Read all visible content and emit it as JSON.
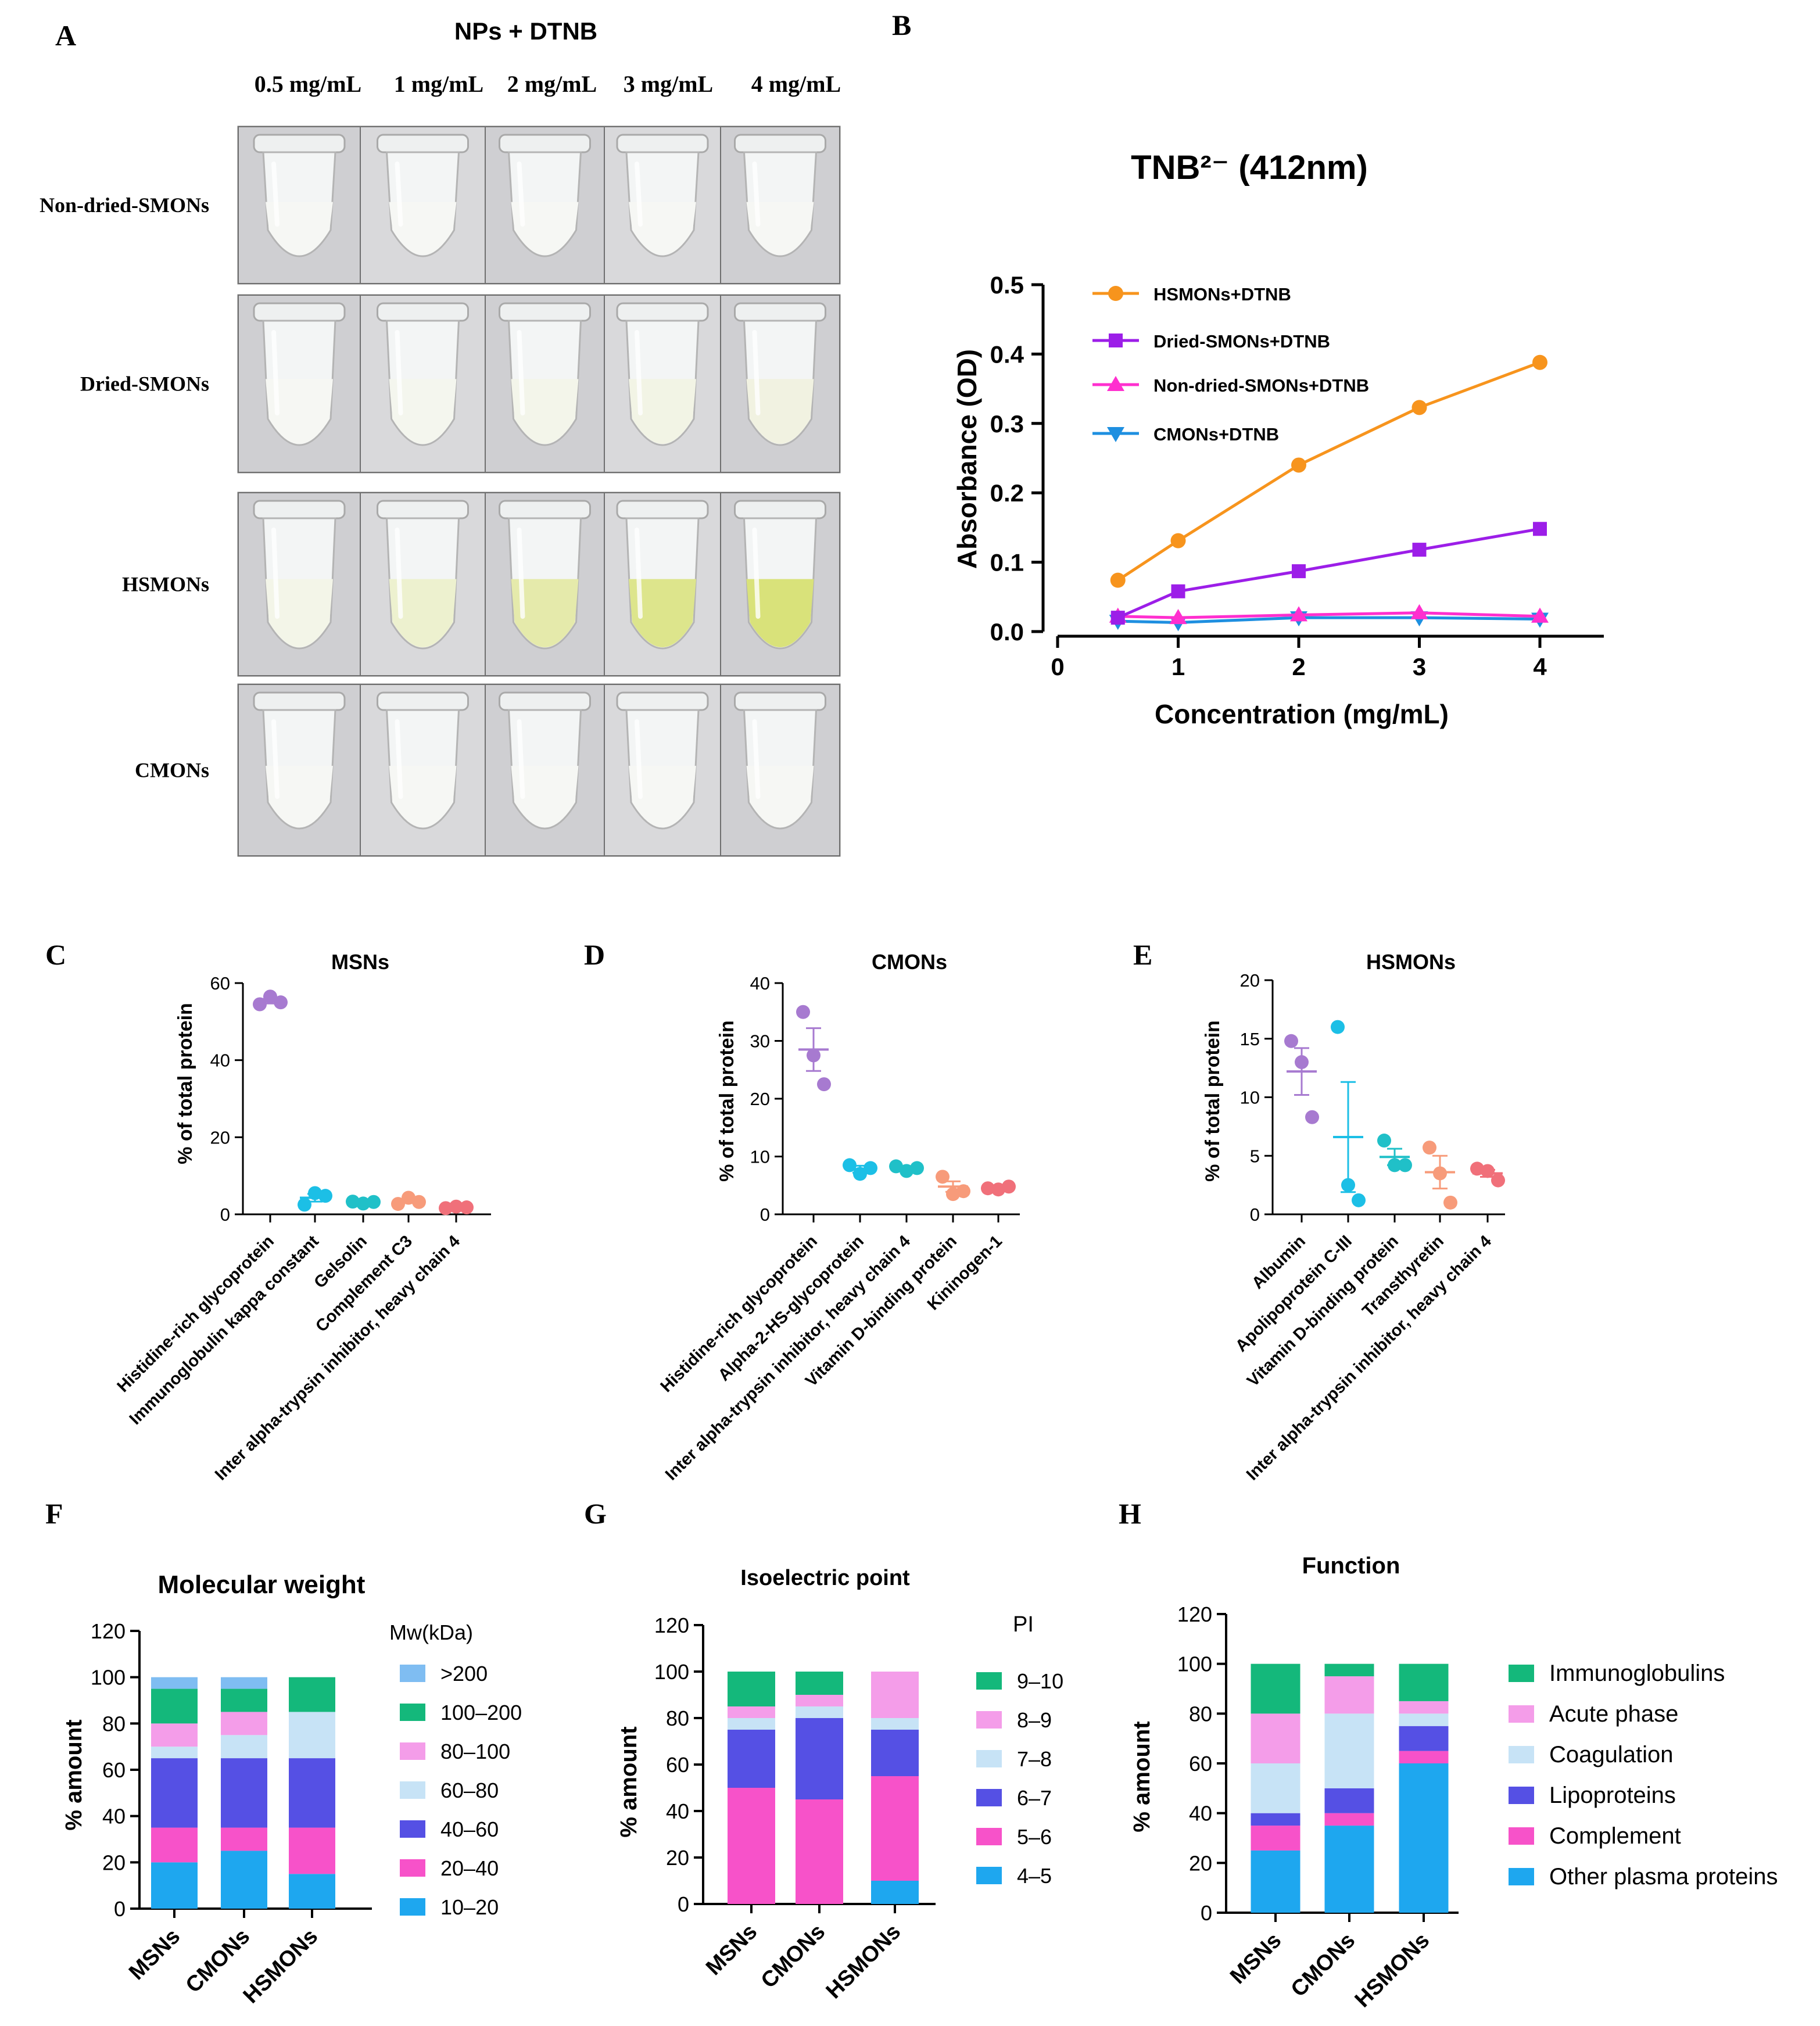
{
  "panelA": {
    "letter": "A",
    "title": "NPs + DTNB",
    "concentrations": [
      "0.5 mg/mL",
      "1 mg/mL",
      "2 mg/mL",
      "3 mg/mL",
      "4 mg/mL"
    ],
    "rows": [
      {
        "label": "Non-dried-SMONs",
        "tint": "#f4f6f4",
        "tint_levels": [
          0.0,
          0.0,
          0.0,
          0.0,
          0.0
        ]
      },
      {
        "label": "Dried-SMONs",
        "tint": "#eef0d6",
        "tint_levels": [
          0.05,
          0.2,
          0.35,
          0.5,
          0.65
        ]
      },
      {
        "label": "HSMONs",
        "tint": "#d9e27a",
        "tint_levels": [
          0.1,
          0.3,
          0.6,
          0.85,
          1.0
        ]
      },
      {
        "label": "CMONs",
        "tint": "#f1f3f2",
        "tint_levels": [
          0.0,
          0.0,
          0.0,
          0.0,
          0.0
        ]
      }
    ]
  },
  "panelB": {
    "letter": "B",
    "chart_data": {
      "type": "line",
      "title": "TNB²⁻ (412nm)",
      "xlabel": "Concentration (mg/mL)",
      "ylabel": "Absorbance (OD)",
      "xlim": [
        0,
        4
      ],
      "ylim": [
        0,
        0.5
      ],
      "xticks": [
        "0",
        "1",
        "2",
        "3",
        "4"
      ],
      "yticks": [
        "0.0",
        "0.1",
        "0.2",
        "0.3",
        "0.4",
        "0.5"
      ],
      "x": [
        0.5,
        1,
        2,
        3,
        4
      ],
      "series": [
        {
          "name": "HSMONs+DTNB",
          "color": "#f7941d",
          "marker": "circle",
          "values": [
            0.074,
            0.131,
            0.24,
            0.323,
            0.388
          ]
        },
        {
          "name": "Dried-SMONs+DTNB",
          "color": "#9c1ee8",
          "marker": "square",
          "values": [
            0.02,
            0.058,
            0.087,
            0.118,
            0.148
          ]
        },
        {
          "name": "Non-dried-SMONs+DTNB",
          "color": "#ff2fcf",
          "marker": "triangle-up",
          "values": [
            0.022,
            0.02,
            0.024,
            0.027,
            0.022
          ]
        },
        {
          "name": "CMONs+DTNB",
          "color": "#1e8fe0",
          "marker": "triangle-down",
          "values": [
            0.015,
            0.013,
            0.02,
            0.02,
            0.018
          ]
        }
      ]
    }
  },
  "panelC": {
    "letter": "C",
    "chart_data": {
      "type": "scatter",
      "title": "MSNs",
      "ylabel": "% of total protein",
      "ylim": [
        0,
        60
      ],
      "yticks": [
        "0",
        "20",
        "40",
        "60"
      ],
      "categories": [
        "Histidine-rich glycoprotein",
        "Immunoglobulin kappa constant",
        "Gelsolin",
        "Complement C3",
        "Inter alpha-trypsin inhibitor, heavy chain 4"
      ],
      "colors": [
        "#a77ad0",
        "#1cbfe6",
        "#20c0c8",
        "#f79b7a",
        "#f0707a"
      ],
      "points": [
        [
          54.5,
          56.5,
          55.0
        ],
        [
          2.5,
          5.5,
          4.8
        ],
        [
          3.3,
          2.8,
          3.2
        ],
        [
          2.7,
          4.3,
          3.2
        ],
        [
          1.6,
          2.0,
          1.8
        ]
      ],
      "means": [
        55.3,
        4.3,
        3.1,
        3.4,
        1.8
      ],
      "errors": [
        0.6,
        1.0,
        0.2,
        0.5,
        0.15
      ]
    }
  },
  "panelD": {
    "letter": "D",
    "chart_data": {
      "type": "scatter",
      "title": "CMONs",
      "ylabel": "% of total protein",
      "ylim": [
        0,
        40
      ],
      "yticks": [
        "0",
        "10",
        "20",
        "30",
        "40"
      ],
      "categories": [
        "Histidine-rich glycoprotein",
        "Alpha-2-HS-glycoprotein",
        "Inter alpha-trypsin inhibitor, heavy chain 4",
        "Vitamin D-binding protein",
        "Kininogen-1"
      ],
      "colors": [
        "#a77ad0",
        "#1cbfe6",
        "#20c0c8",
        "#f79b7a",
        "#f0707a"
      ],
      "points": [
        [
          35.0,
          27.5,
          22.5
        ],
        [
          8.5,
          7.0,
          8.0
        ],
        [
          8.3,
          7.5,
          8.0
        ],
        [
          6.5,
          3.5,
          4.0
        ],
        [
          4.5,
          4.3,
          4.8
        ]
      ],
      "means": [
        28.5,
        7.8,
        7.9,
        4.8,
        4.5
      ],
      "errors": [
        3.7,
        0.6,
        0.3,
        0.9,
        0.2
      ]
    }
  },
  "panelE": {
    "letter": "E",
    "chart_data": {
      "type": "scatter",
      "title": "HSMONs",
      "ylabel": "% of total protein",
      "ylim": [
        0,
        20
      ],
      "yticks": [
        "0",
        "5",
        "10",
        "15",
        "20"
      ],
      "categories": [
        "Albumin",
        "Apolipoprotein C-III",
        "Vitamin D-binding protein",
        "Transthyretin",
        "Inter alpha-trypsin inhibitor, heavy chain 4"
      ],
      "colors": [
        "#a77ad0",
        "#1cbfe6",
        "#20c0c8",
        "#f79b7a",
        "#f0707a"
      ],
      "points": [
        [
          14.8,
          13.0,
          8.3
        ],
        [
          16.0,
          2.5,
          1.2
        ],
        [
          6.3,
          4.2,
          4.2
        ],
        [
          5.7,
          3.5,
          1.0
        ],
        [
          3.9,
          3.7,
          2.9
        ]
      ],
      "means": [
        12.2,
        6.6,
        4.9,
        3.6,
        3.5
      ],
      "errors": [
        2.0,
        4.7,
        0.7,
        1.4,
        0.3
      ]
    }
  },
  "panelF": {
    "letter": "F",
    "chart_data": {
      "type": "bar",
      "stacked": true,
      "title": "Molecular weight",
      "ylabel": "% amount",
      "ylim": [
        0,
        120
      ],
      "yticks": [
        "0",
        "20",
        "40",
        "60",
        "80",
        "100",
        "120"
      ],
      "categories": [
        "MSNs",
        "CMONs",
        "HSMONs"
      ],
      "legend_title": "Mw(kDa)",
      "series": [
        {
          "name": "10–20",
          "color": "#1ea7ef",
          "values": [
            20,
            25,
            15
          ]
        },
        {
          "name": "20–40",
          "color": "#f752c9",
          "values": [
            15,
            10,
            20
          ]
        },
        {
          "name": "40–60",
          "color": "#5550e4",
          "values": [
            30,
            30,
            30
          ]
        },
        {
          "name": "60–80",
          "color": "#c7e3f6",
          "values": [
            5,
            10,
            20
          ]
        },
        {
          "name": "80–100",
          "color": "#f49de9",
          "values": [
            10,
            10,
            0
          ]
        },
        {
          "name": "100–200",
          "color": "#14b87b",
          "values": [
            15,
            10,
            15
          ]
        },
        {
          "name": ">200",
          "color": "#7fbdf2",
          "values": [
            5,
            5,
            0
          ]
        }
      ]
    }
  },
  "panelG": {
    "letter": "G",
    "chart_data": {
      "type": "bar",
      "stacked": true,
      "title": "Isoelectric point",
      "ylabel": "% amount",
      "ylim": [
        0,
        120
      ],
      "yticks": [
        "0",
        "20",
        "40",
        "60",
        "80",
        "100",
        "120"
      ],
      "categories": [
        "MSNs",
        "CMONs",
        "HSMONs"
      ],
      "legend_title": "PI",
      "series": [
        {
          "name": "4–5",
          "color": "#1ea7ef",
          "values": [
            0,
            0,
            10
          ]
        },
        {
          "name": "5–6",
          "color": "#f752c9",
          "values": [
            50,
            45,
            45
          ]
        },
        {
          "name": "6–7",
          "color": "#5550e4",
          "values": [
            25,
            35,
            20
          ]
        },
        {
          "name": "7–8",
          "color": "#c7e3f6",
          "values": [
            5,
            5,
            5
          ]
        },
        {
          "name": "8–9",
          "color": "#f49de9",
          "values": [
            5,
            5,
            20
          ]
        },
        {
          "name": "9–10",
          "color": "#14b87b",
          "values": [
            15,
            10,
            0
          ]
        }
      ]
    }
  },
  "panelH": {
    "letter": "H",
    "chart_data": {
      "type": "bar",
      "stacked": true,
      "title": "Function",
      "ylabel": "% amount",
      "ylim": [
        0,
        120
      ],
      "yticks": [
        "0",
        "20",
        "40",
        "60",
        "80",
        "100",
        "120"
      ],
      "categories": [
        "MSNs",
        "CMONs",
        "HSMONs"
      ],
      "series": [
        {
          "name": "Other plasma proteins",
          "color": "#1ea7ef",
          "values": [
            25,
            35,
            60
          ]
        },
        {
          "name": "Complement",
          "color": "#f752c9",
          "values": [
            10,
            5,
            5
          ]
        },
        {
          "name": "Lipoproteins",
          "color": "#5550e4",
          "values": [
            5,
            10,
            10
          ]
        },
        {
          "name": "Coagulation",
          "color": "#c7e3f6",
          "values": [
            20,
            30,
            5
          ]
        },
        {
          "name": "Acute phase",
          "color": "#f49de9",
          "values": [
            20,
            15,
            5
          ]
        },
        {
          "name": "Immunoglobulins",
          "color": "#14b87b",
          "values": [
            20,
            5,
            15
          ]
        }
      ]
    }
  }
}
